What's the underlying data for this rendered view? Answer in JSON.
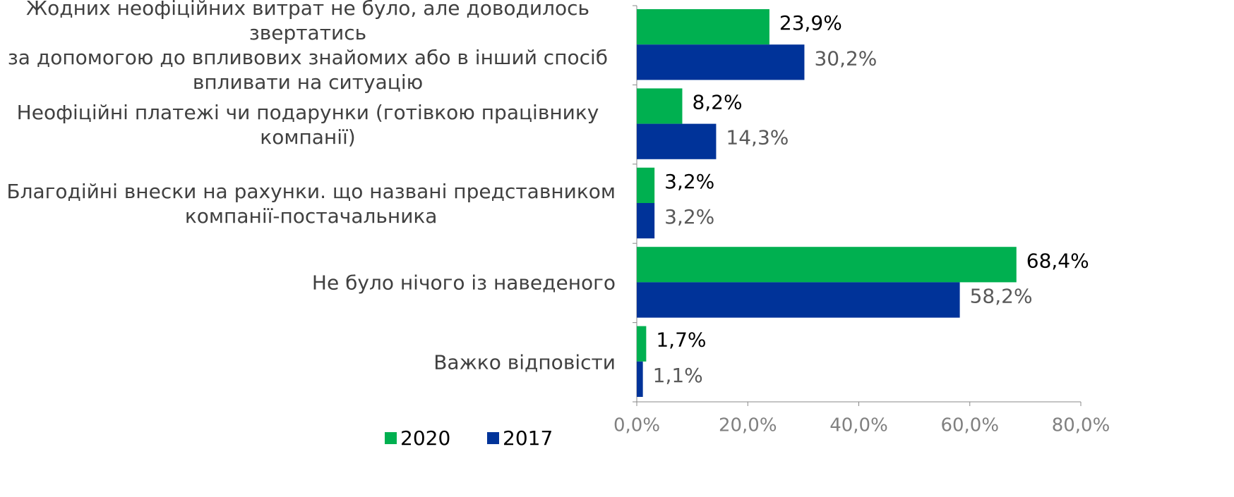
{
  "chart_data": {
    "type": "barh",
    "categories": [
      "Жодних неофіційних витрат не було, але доводилось звертатись\nза допомогою до впливових знайомих або в інший спосіб\nвпливати на ситуацію",
      "Неофіційні платежі чи подарунки (готівкою працівнику компанії)",
      "Благодійні внески на рахунки. що названі представником\nкомпанії-постачальника",
      "Не було нічого із наведеного",
      "Важко відповісти"
    ],
    "series": [
      {
        "name": "2020",
        "color": "#00b050",
        "values": [
          23.9,
          8.2,
          3.2,
          68.4,
          1.7
        ],
        "value_labels": [
          "23,9%",
          "8,2%",
          "3,2%",
          "68,4%",
          "1,7%"
        ]
      },
      {
        "name": "2017",
        "color": "#003399",
        "values": [
          30.2,
          14.3,
          3.2,
          58.2,
          1.1
        ],
        "value_labels": [
          "30,2%",
          "14,3%",
          "3,2%",
          "58,2%",
          "1,1%"
        ]
      }
    ],
    "xlim": [
      0,
      80
    ],
    "xticks": [
      {
        "value": 0,
        "label": "0,0%"
      },
      {
        "value": 20,
        "label": "20,0%"
      },
      {
        "value": 40,
        "label": "40,0%"
      },
      {
        "value": 60,
        "label": "60,0%"
      },
      {
        "value": 80,
        "label": "80,0%"
      }
    ],
    "legend": "bottom"
  }
}
